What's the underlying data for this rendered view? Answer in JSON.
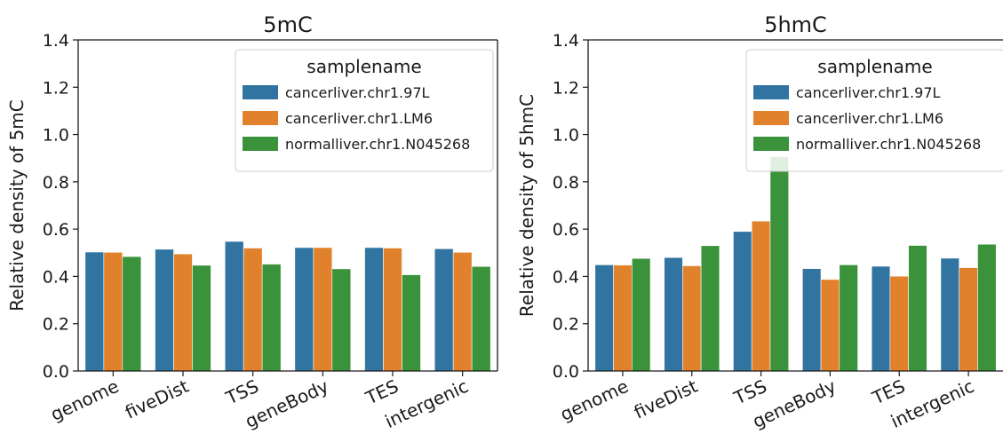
{
  "legend_title": "samplename",
  "chart_data": [
    {
      "type": "bar",
      "title": "5mC",
      "xlabel": "",
      "ylabel": "Relative density of 5mC",
      "ylim": [
        0,
        1.4
      ],
      "yticks": [
        "0.0",
        "0.2",
        "0.4",
        "0.6",
        "0.8",
        "1.0",
        "1.2",
        "1.4"
      ],
      "categories": [
        "genome",
        "fiveDist",
        "TSS",
        "geneBody",
        "TES",
        "intergenic"
      ],
      "legend_position": "top-right",
      "series": [
        {
          "name": "cancerliver.chr1.97L",
          "color": "#3274a1",
          "values": [
            0.503,
            0.515,
            0.548,
            0.522,
            0.522,
            0.517
          ]
        },
        {
          "name": "cancerliver.chr1.LM6",
          "color": "#e1812c",
          "values": [
            0.502,
            0.495,
            0.52,
            0.522,
            0.52,
            0.502
          ]
        },
        {
          "name": "normalliver.chr1.N045268",
          "color": "#3a923a",
          "values": [
            0.484,
            0.447,
            0.452,
            0.432,
            0.407,
            0.442
          ]
        }
      ]
    },
    {
      "type": "bar",
      "title": "5hmC",
      "xlabel": "",
      "ylabel": "Relative density of 5hmC",
      "ylim": [
        0,
        1.4
      ],
      "yticks": [
        "0.0",
        "0.2",
        "0.4",
        "0.6",
        "0.8",
        "1.0",
        "1.2",
        "1.4"
      ],
      "categories": [
        "genome",
        "fiveDist",
        "TSS",
        "geneBody",
        "TES",
        "intergenic"
      ],
      "legend_position": "top-right",
      "series": [
        {
          "name": "cancerliver.chr1.97L",
          "color": "#3274a1",
          "values": [
            0.449,
            0.48,
            0.59,
            0.433,
            0.443,
            0.477
          ]
        },
        {
          "name": "cancerliver.chr1.LM6",
          "color": "#e1812c",
          "values": [
            0.448,
            0.445,
            0.634,
            0.387,
            0.401,
            0.437
          ]
        },
        {
          "name": "normalliver.chr1.N045268",
          "color": "#3a923a",
          "values": [
            0.476,
            0.53,
            0.906,
            0.449,
            0.531,
            0.536
          ]
        }
      ]
    }
  ]
}
